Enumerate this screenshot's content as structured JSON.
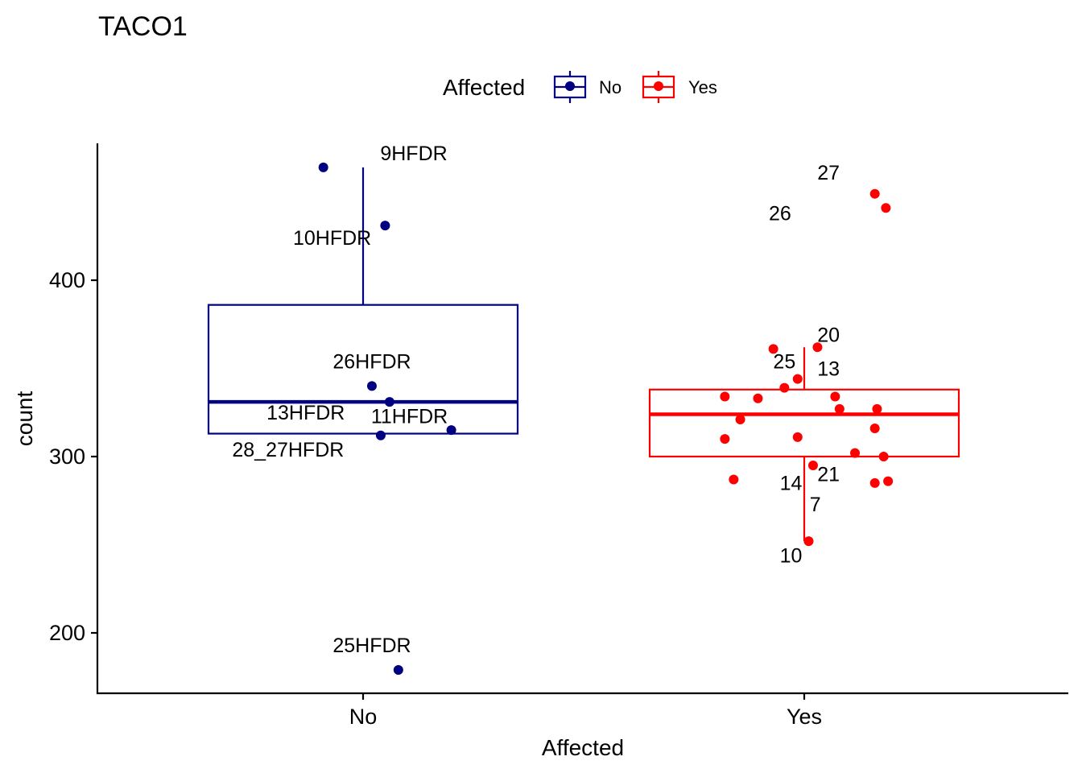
{
  "chart_data": {
    "type": "box",
    "title": "TACO1",
    "xlabel": "Affected",
    "ylabel": "count",
    "categories": [
      "No",
      "Yes"
    ],
    "ylim": [
      168,
      480
    ],
    "yticks": [
      200,
      300,
      400
    ],
    "legend": {
      "title": "Affected",
      "position": "top",
      "entries": [
        {
          "label": "No",
          "color": "#000080"
        },
        {
          "label": "Yes",
          "color": "#ff0000"
        }
      ]
    },
    "series": [
      {
        "name": "No",
        "color": "#000080",
        "box": {
          "whisker_low": 313,
          "q1": 313,
          "median": 331,
          "q3": 386,
          "whisker_high": 464
        },
        "points": [
          {
            "x": 0.91,
            "y": 464
          },
          {
            "x": 1.05,
            "y": 431
          },
          {
            "x": 1.02,
            "y": 340
          },
          {
            "x": 1.06,
            "y": 331
          },
          {
            "x": 1.2,
            "y": 315
          },
          {
            "x": 1.04,
            "y": 312
          },
          {
            "x": 1.08,
            "y": 179
          }
        ],
        "labels": [
          {
            "text": "9HFDR",
            "x": 1.115,
            "y": 468
          },
          {
            "text": "10HFDR",
            "x": 0.93,
            "y": 420
          },
          {
            "text": "26HFDR",
            "x": 1.02,
            "y": 350
          },
          {
            "text": "13HFDR",
            "x": 0.87,
            "y": 321
          },
          {
            "text": "11HFDR",
            "x": 1.105,
            "y": 319
          },
          {
            "text": "28_27HFDR",
            "x": 0.83,
            "y": 300
          },
          {
            "text": "25HFDR",
            "x": 1.02,
            "y": 189
          }
        ]
      },
      {
        "name": "Yes",
        "color": "#ff0000",
        "box": {
          "whisker_low": 252,
          "q1": 300,
          "median": 324,
          "q3": 338,
          "whisker_high": 362
        },
        "points": [
          {
            "x": 2.16,
            "y": 449
          },
          {
            "x": 2.185,
            "y": 441
          },
          {
            "x": 1.93,
            "y": 361
          },
          {
            "x": 2.03,
            "y": 362
          },
          {
            "x": 1.985,
            "y": 344
          },
          {
            "x": 1.955,
            "y": 339
          },
          {
            "x": 1.82,
            "y": 334
          },
          {
            "x": 1.895,
            "y": 333
          },
          {
            "x": 2.07,
            "y": 334
          },
          {
            "x": 2.08,
            "y": 327
          },
          {
            "x": 2.165,
            "y": 327
          },
          {
            "x": 1.855,
            "y": 321
          },
          {
            "x": 2.16,
            "y": 316
          },
          {
            "x": 1.82,
            "y": 310
          },
          {
            "x": 1.985,
            "y": 311
          },
          {
            "x": 2.115,
            "y": 302
          },
          {
            "x": 2.18,
            "y": 300
          },
          {
            "x": 2.02,
            "y": 295
          },
          {
            "x": 1.84,
            "y": 287
          },
          {
            "x": 2.16,
            "y": 285
          },
          {
            "x": 2.19,
            "y": 286
          },
          {
            "x": 2.01,
            "y": 252
          }
        ],
        "labels": [
          {
            "text": "27",
            "x": 2.055,
            "y": 457
          },
          {
            "text": "26",
            "x": 1.945,
            "y": 434
          },
          {
            "text": "20",
            "x": 2.055,
            "y": 365
          },
          {
            "text": "25",
            "x": 1.955,
            "y": 350
          },
          {
            "text": "13",
            "x": 2.055,
            "y": 346
          },
          {
            "text": "21",
            "x": 2.055,
            "y": 286
          },
          {
            "text": "14",
            "x": 1.97,
            "y": 281
          },
          {
            "text": "7",
            "x": 2.025,
            "y": 269
          },
          {
            "text": "10",
            "x": 1.97,
            "y": 240
          }
        ]
      }
    ]
  }
}
